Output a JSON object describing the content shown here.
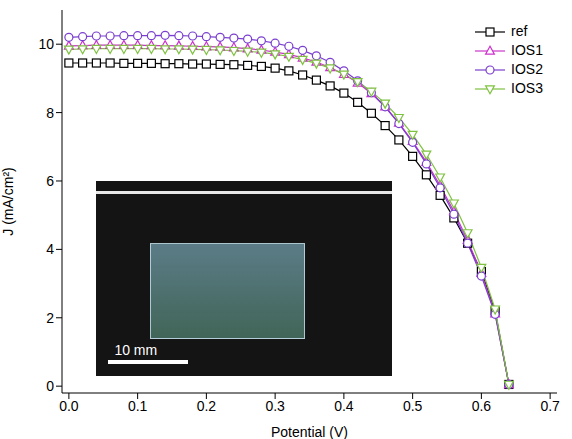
{
  "chart_data": {
    "type": "line",
    "x_label": "Potential (V)",
    "y_label": "J (mA/cm²)",
    "annotation": "10 mm",
    "legend": "upper right",
    "xlim": [
      -0.01,
      0.71
    ],
    "ylim": [
      -0.2,
      11
    ],
    "xticks": [
      {
        "value": 0,
        "label": "0.0"
      },
      0.1,
      0.2,
      0.3,
      0.4,
      0.5,
      0.6,
      0.7
    ],
    "yticks": [
      0,
      2,
      4,
      6,
      8,
      10
    ],
    "x": [
      0,
      0.02,
      0.04,
      0.06,
      0.08,
      0.1,
      0.12,
      0.14,
      0.16,
      0.18,
      0.2,
      0.22,
      0.24,
      0.26,
      0.28,
      0.3,
      0.32,
      0.34,
      0.36,
      0.38,
      0.4,
      0.42,
      0.44,
      0.46,
      0.48,
      0.5,
      0.52,
      0.54,
      0.56,
      0.58,
      0.6,
      0.62,
      0.64
    ],
    "series": [
      {
        "name": "ref",
        "color": "#000000",
        "marker": "square",
        "values": [
          9.45,
          9.45,
          9.45,
          9.45,
          9.44,
          9.44,
          9.44,
          9.43,
          9.43,
          9.42,
          9.42,
          9.41,
          9.4,
          9.38,
          9.35,
          9.3,
          9.22,
          9.1,
          8.95,
          8.78,
          8.57,
          8.3,
          7.98,
          7.62,
          7.2,
          6.72,
          6.18,
          5.58,
          4.92,
          4.18,
          3.35,
          2.2,
          0.05
        ]
      },
      {
        "name": "IOS1",
        "color": "#cc33cc",
        "marker": "triangle",
        "values": [
          9.95,
          9.96,
          9.97,
          9.97,
          9.97,
          9.97,
          9.96,
          9.96,
          9.95,
          9.94,
          9.93,
          9.92,
          9.9,
          9.87,
          9.83,
          9.77,
          9.7,
          9.6,
          9.48,
          9.32,
          9.12,
          8.87,
          8.56,
          8.17,
          7.7,
          7.16,
          6.55,
          5.87,
          5.11,
          4.27,
          3.3,
          2.12,
          0.05
        ]
      },
      {
        "name": "IOS2",
        "color": "#7a3fcf",
        "marker": "circle",
        "values": [
          10.2,
          10.22,
          10.24,
          10.24,
          10.25,
          10.25,
          10.25,
          10.26,
          10.25,
          10.24,
          10.22,
          10.2,
          10.18,
          10.15,
          10.1,
          10.03,
          9.94,
          9.82,
          9.66,
          9.47,
          9.22,
          8.93,
          8.58,
          8.17,
          7.68,
          7.13,
          6.5,
          5.8,
          5.03,
          4.18,
          3.22,
          2.1,
          0.05
        ]
      },
      {
        "name": "IOS3",
        "color": "#7fc241",
        "marker": "triangle-down",
        "values": [
          9.85,
          9.86,
          9.87,
          9.87,
          9.87,
          9.87,
          9.87,
          9.86,
          9.86,
          9.85,
          9.84,
          9.83,
          9.81,
          9.79,
          9.76,
          9.71,
          9.64,
          9.55,
          9.44,
          9.3,
          9.12,
          8.9,
          8.62,
          8.27,
          7.85,
          7.36,
          6.78,
          6.11,
          5.35,
          4.48,
          3.47,
          2.25,
          0.05
        ]
      }
    ]
  }
}
